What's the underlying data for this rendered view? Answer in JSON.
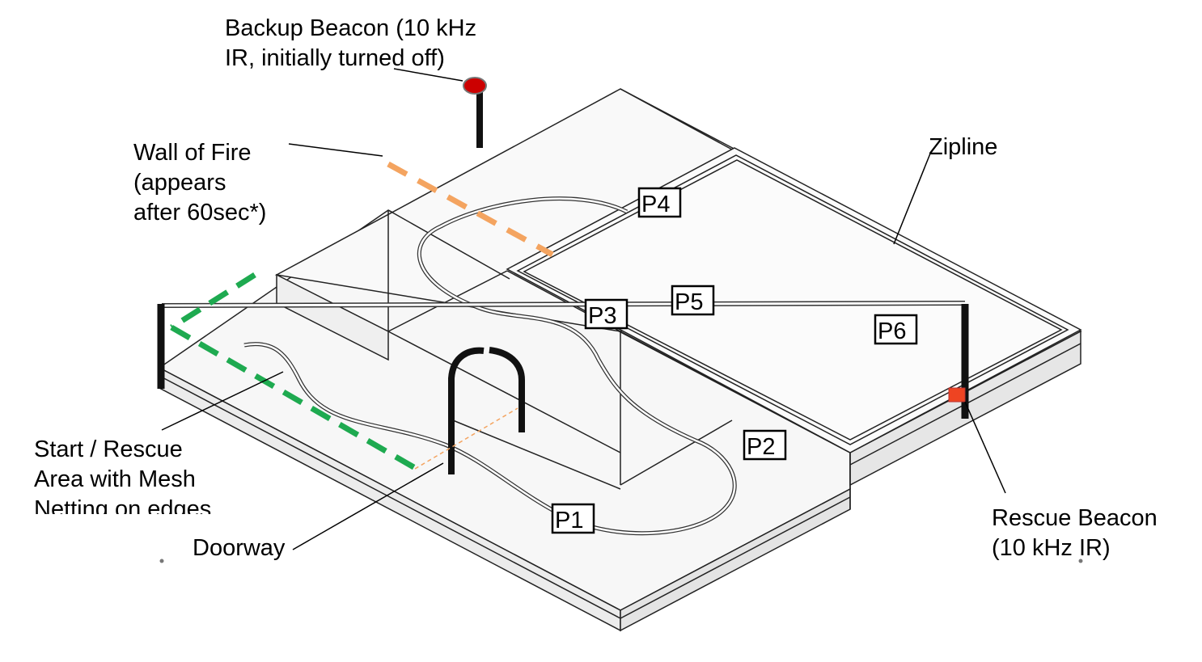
{
  "labels": {
    "backup_beacon_line1": "Backup Beacon  (10 kHz",
    "backup_beacon_line2": "IR, initially turned off)",
    "wall_of_fire_line1": "Wall of Fire",
    "wall_of_fire_line2": "(appears",
    "wall_of_fire_line3": "after 60sec*)",
    "zipline": "Zipline",
    "start_line1": "Start / Rescue",
    "start_line2": "Area with Mesh",
    "start_line3": "Netting on edges",
    "doorway": "Doorway",
    "rescue_beacon_line1": "Rescue Beacon",
    "rescue_beacon_line2": "(10 kHz IR)"
  },
  "positions": {
    "p1": "P1",
    "p2": "P2",
    "p3": "P3",
    "p4": "P4",
    "p5": "P5",
    "p6": "P6"
  },
  "colors": {
    "wall_of_fire": "#f4a460",
    "start_mesh": "#1eaa50",
    "backup_beacon": "#cc0000",
    "rescue_beacon": "#ee4422",
    "outline": "#222222"
  }
}
